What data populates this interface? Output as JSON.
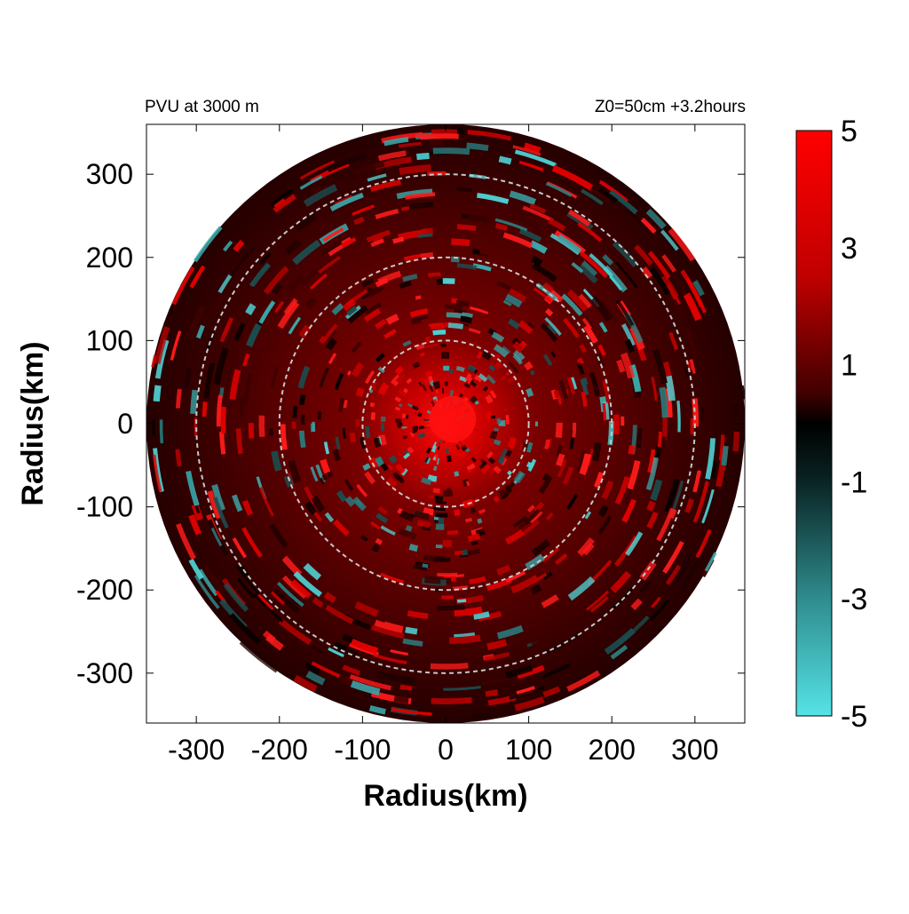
{
  "chart_data": {
    "type": "heatmap",
    "title_left": "PVU at  3000 m",
    "title_right": "Z0=50cm  +3.2hours",
    "xlabel": "Radius(km)",
    "ylabel": "Radius(km)",
    "xlim": [
      -360,
      360
    ],
    "ylim": [
      -360,
      360
    ],
    "x_ticks": [
      -300,
      -200,
      -100,
      0,
      100,
      200,
      300
    ],
    "y_ticks": [
      300,
      200,
      100,
      0,
      -100,
      -200,
      -300
    ],
    "domain_radius_km": 360,
    "reference_circles_km": [
      100,
      200,
      300
    ],
    "colorbar": {
      "range": [
        -5,
        5
      ],
      "ticks": [
        5,
        3,
        1,
        -1,
        -3,
        -5
      ],
      "colors": {
        "max": "#ff0000",
        "mid": "#000000",
        "min": "#55e3e6"
      }
    },
    "field_description_values": {
      "core_max_pvu": 5,
      "core_radius_km": 40,
      "background_pvu": 1
    }
  }
}
